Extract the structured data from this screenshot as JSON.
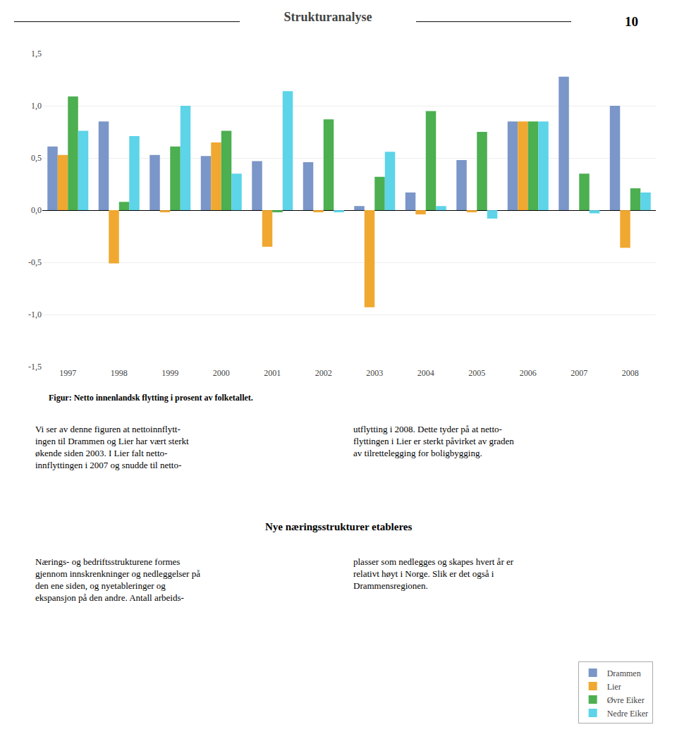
{
  "chart_data": {
    "type": "bar",
    "title": "Strukturanalyse",
    "categories": [
      "1997",
      "1998",
      "1999",
      "2000",
      "2001",
      "2002",
      "2003",
      "2004",
      "2005",
      "2006",
      "2007",
      "2008"
    ],
    "series": [
      {
        "name": "Drammen",
        "color": "#7b96c8",
        "values": [
          0.61,
          0.85,
          0.53,
          0.52,
          0.47,
          0.46,
          0.04,
          0.17,
          0.48,
          0.85,
          1.28,
          1.0
        ]
      },
      {
        "name": "Lier",
        "color": "#f0a830",
        "values": [
          0.53,
          -0.51,
          -0.02,
          0.65,
          -0.35,
          -0.02,
          -0.93,
          -0.04,
          -0.02,
          0.85,
          0.0,
          -0.36
        ]
      },
      {
        "name": "Øvre Eiker",
        "color": "#4caf50",
        "values": [
          1.09,
          0.08,
          0.61,
          0.76,
          -0.02,
          0.87,
          0.32,
          0.95,
          0.75,
          0.85,
          0.35,
          0.21
        ]
      },
      {
        "name": "Nedre Eiker",
        "color": "#5dd4e8",
        "values": [
          0.76,
          0.71,
          1.0,
          0.35,
          1.14,
          -0.02,
          0.56,
          0.04,
          -0.08,
          0.85,
          -0.03,
          0.17
        ]
      }
    ],
    "ylim": [
      -1.5,
      1.5
    ],
    "yticks": [
      {
        "value": -1.5,
        "label": "-1,5"
      },
      {
        "value": -1.0,
        "label": "-1,0"
      },
      {
        "value": -0.5,
        "label": "-0,5"
      },
      {
        "value": 0.0,
        "label": "0,0"
      },
      {
        "value": 0.5,
        "label": "0,5"
      },
      {
        "value": 1.0,
        "label": "1,0"
      },
      {
        "value": 1.5,
        "label": "1,5"
      }
    ],
    "grid": true,
    "legend": "lower right",
    "annotations": [
      "10",
      "Figur: Netto innenlandsk flytting i prosent av folketallet.",
      "Vi ser av denne figuren at nettoinnflytt-\ningen til Drammen og Lier har vært sterkt\nøkende siden 2003. I Lier falt netto-\ninnflyttingen i 2007 og snudde til netto-",
      "utflytting i 2008. Dette tyder på at netto-\nflyttingen i Lier er sterkt påvirket av graden\nav tilrettelegging for boligbygging.",
      "Nye næringsstrukturer etableres",
      "Nærings- og bedriftsstrukturene formes\ngjennom innskrenkninger og nedleggelser på\nden ene siden, og nyetableringer og\nekspansjon på den andre. Antall arbeids-",
      "plasser som nedlegges og skapes hvert år er\nrelativt høyt i Norge. Slik er det også i\nDrammensregionen."
    ]
  }
}
